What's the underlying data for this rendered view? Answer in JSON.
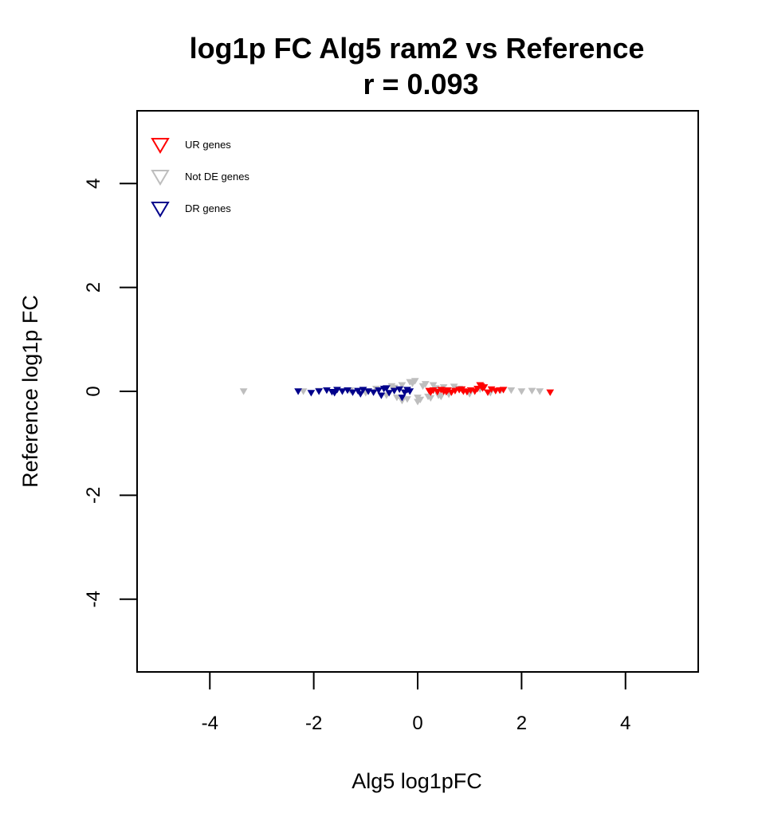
{
  "chart_data": {
    "type": "scatter",
    "title": "log1p FC Alg5 ram2 vs Reference",
    "subtitle": "r = 0.093",
    "xlabel": "Alg5 log1pFC",
    "ylabel": "Reference log1p FC",
    "xlim": [
      -5.4,
      5.4
    ],
    "ylim": [
      -5.4,
      5.4
    ],
    "xticks": [
      -4,
      -2,
      0,
      2,
      4
    ],
    "yticks": [
      -4,
      -2,
      0,
      2,
      4
    ],
    "grid": false,
    "legend_position": "top-left",
    "marker": "down-triangle",
    "series": [
      {
        "name": "UR genes",
        "color": "#ff0000",
        "x": [
          0.22,
          0.3,
          0.38,
          0.45,
          0.5,
          0.58,
          0.65,
          0.72,
          0.8,
          0.88,
          0.95,
          1.02,
          1.1,
          1.15,
          1.22,
          1.28,
          1.35,
          1.42,
          1.5,
          1.58,
          1.65,
          0.25,
          0.55,
          0.85,
          1.2,
          1.25,
          2.55
        ],
        "y": [
          0.01,
          0.02,
          -0.01,
          0.03,
          0.0,
          0.02,
          -0.02,
          0.01,
          0.03,
          0.0,
          -0.01,
          0.02,
          0.0,
          0.05,
          0.1,
          0.08,
          -0.02,
          0.04,
          0.01,
          0.02,
          0.03,
          -0.02,
          -0.01,
          0.04,
          0.12,
          0.06,
          -0.02
        ]
      },
      {
        "name": "Not DE genes",
        "color": "#bebebe",
        "x": [
          -3.35,
          -2.2,
          -1.9,
          -1.6,
          -1.3,
          -1.0,
          -0.8,
          -0.6,
          -0.5,
          -0.4,
          -0.3,
          -0.2,
          -0.1,
          0.0,
          0.1,
          0.2,
          0.3,
          0.4,
          0.5,
          0.6,
          0.8,
          1.0,
          1.2,
          1.4,
          1.6,
          1.8,
          2.0,
          2.2,
          2.35,
          -0.3,
          -0.15,
          0.05,
          0.15,
          0.25,
          -0.05,
          0.0,
          0.35,
          -0.45,
          0.45,
          0.7
        ],
        "y": [
          0.0,
          0.0,
          0.01,
          -0.02,
          0.02,
          -0.03,
          0.05,
          -0.08,
          0.1,
          -0.12,
          0.12,
          -0.15,
          0.15,
          -0.12,
          0.1,
          -0.1,
          0.12,
          -0.08,
          0.08,
          -0.06,
          0.05,
          -0.05,
          0.04,
          -0.03,
          0.02,
          0.02,
          0.0,
          0.01,
          0.0,
          -0.18,
          0.18,
          -0.16,
          0.14,
          -0.13,
          0.2,
          -0.2,
          0.06,
          0.07,
          -0.1,
          0.09
        ]
      },
      {
        "name": "DR genes",
        "color": "#00008b",
        "x": [
          -2.3,
          -2.05,
          -1.9,
          -1.75,
          -1.65,
          -1.55,
          -1.45,
          -1.35,
          -1.25,
          -1.15,
          -1.05,
          -0.95,
          -0.85,
          -0.75,
          -0.65,
          -0.55,
          -0.45,
          -0.35,
          -0.25,
          -0.15,
          -1.6,
          -1.1,
          -0.7,
          -0.6,
          -0.3,
          -0.2
        ],
        "y": [
          0.0,
          -0.03,
          0.0,
          0.02,
          -0.01,
          0.03,
          0.0,
          0.02,
          -0.02,
          0.01,
          0.03,
          0.0,
          -0.02,
          0.02,
          0.05,
          -0.03,
          0.01,
          0.04,
          -0.02,
          0.0,
          -0.03,
          -0.05,
          -0.08,
          0.06,
          -0.12,
          0.03
        ]
      }
    ]
  }
}
